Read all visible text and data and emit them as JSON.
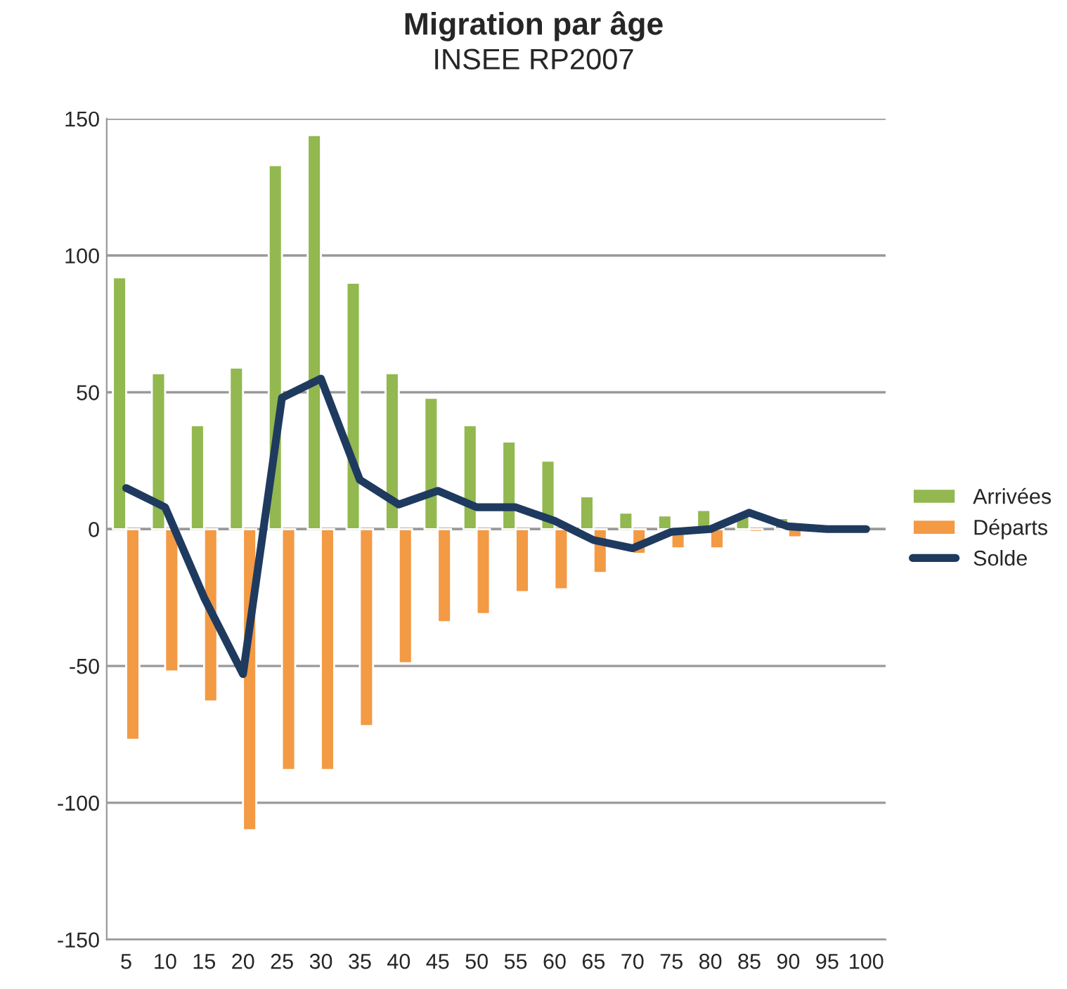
{
  "chart_data": {
    "type": "bar",
    "title": "Migration par âge",
    "subtitle": "INSEE RP2007",
    "categories": [
      "5",
      "10",
      "15",
      "20",
      "25",
      "30",
      "35",
      "40",
      "45",
      "50",
      "55",
      "60",
      "65",
      "70",
      "75",
      "80",
      "85",
      "90",
      "95",
      "100"
    ],
    "series": [
      {
        "name": "Arrivées",
        "color": "#92b84f",
        "values": [
          92,
          57,
          38,
          59,
          133,
          144,
          90,
          57,
          48,
          38,
          32,
          25,
          12,
          6,
          5,
          7,
          5,
          4,
          null,
          null
        ]
      },
      {
        "name": "Départs",
        "color": "#f39a45",
        "values": [
          -77,
          -52,
          -63,
          -110,
          -88,
          -88,
          -72,
          -49,
          -34,
          -31,
          -23,
          -22,
          -16,
          -9,
          -7,
          -7,
          -1,
          -3,
          null,
          null
        ]
      },
      {
        "name": "Solde",
        "type": "line",
        "color": "#1f3a5f",
        "values": [
          15,
          8,
          -25,
          -53,
          48,
          55,
          18,
          9,
          14,
          8,
          8,
          3,
          -4,
          -7,
          -1,
          0,
          6,
          1,
          0,
          0
        ]
      }
    ],
    "ylim": [
      -150,
      150
    ],
    "yticks": [
      -150,
      -100,
      -50,
      0,
      50,
      100,
      150
    ],
    "grid": "y",
    "legend": "right"
  }
}
